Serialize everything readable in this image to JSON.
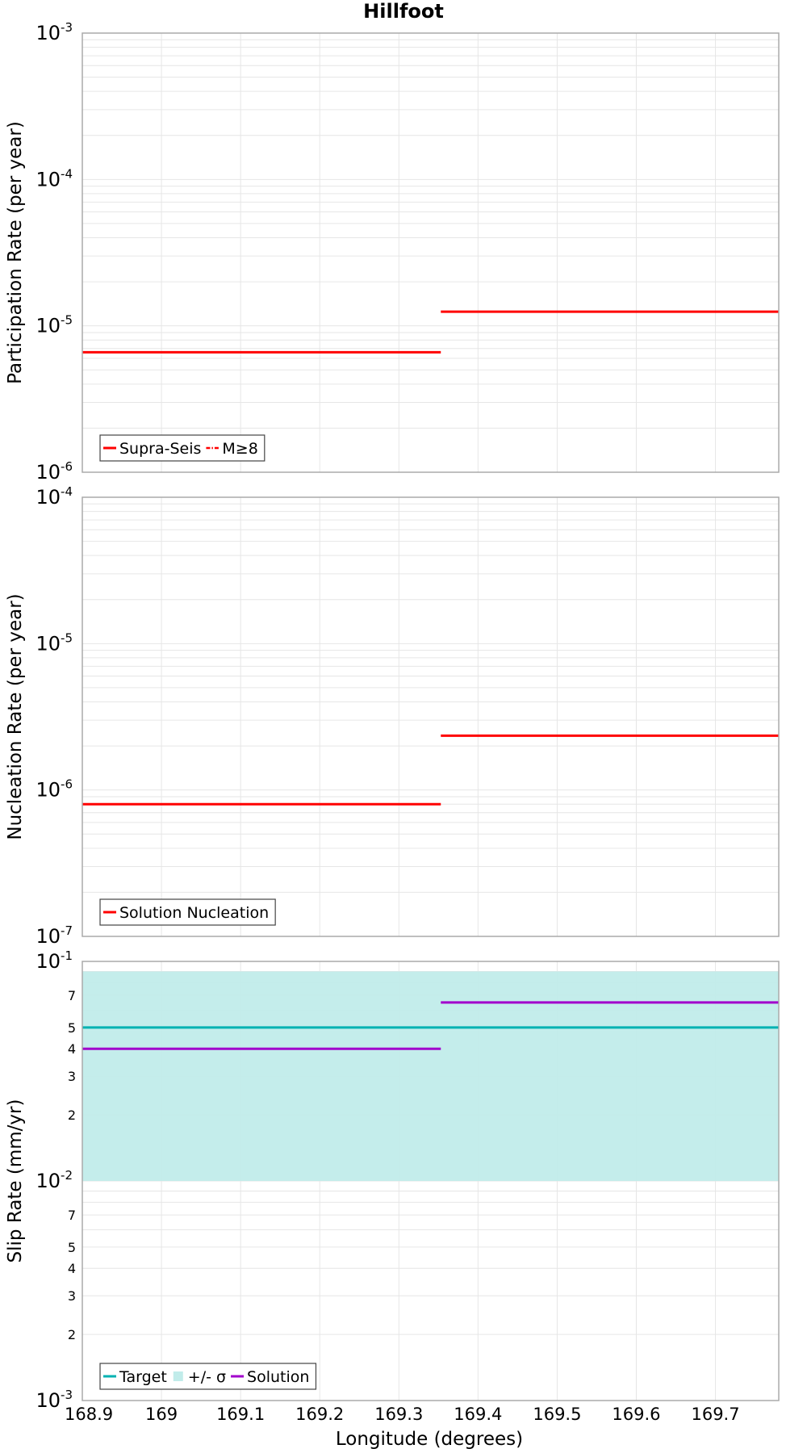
{
  "title": "Hillfoot",
  "colors": {
    "red": "#ff0000",
    "target": "#00b2b2",
    "band": "#c1ecea",
    "solution": "#a200cc",
    "grid": "#e6e6e6",
    "frame": "#aaaaaa"
  },
  "chart_data": {
    "type": "line",
    "title": "Hillfoot",
    "xlabel": "Longitude (degrees)",
    "xlim": [
      168.9,
      169.78
    ],
    "xticks": [
      "168.9",
      "169",
      "169.1",
      "169.2",
      "169.3",
      "169.4",
      "169.5",
      "169.6",
      "169.7"
    ],
    "panels": [
      {
        "id": "participation",
        "ylabel": "Participation Rate (per year)",
        "yscale": "log",
        "ylim": [
          1e-06,
          0.001
        ],
        "major_ticks": [
          {
            "exp": -6,
            "base": "10",
            "sup": "-6"
          },
          {
            "exp": -5,
            "base": "10",
            "sup": "-5"
          },
          {
            "exp": -4,
            "base": "10",
            "sup": "-4"
          },
          {
            "exp": -3,
            "base": "10",
            "sup": "-3"
          }
        ],
        "minor_labels": [],
        "series": [
          {
            "name": "Supra-Seis",
            "style": "solid",
            "color": "#ff0000",
            "segments": [
              {
                "x0": 168.9,
                "x1": 169.353,
                "y": 6.6e-06
              },
              {
                "x0": 169.353,
                "x1": 169.78,
                "y": 1.25e-05
              }
            ]
          },
          {
            "name": "M≥8",
            "style": "dashdot",
            "color": "#ff0000",
            "segments": []
          }
        ],
        "legend": [
          {
            "label": "Supra-Seis",
            "kind": "solid",
            "color": "#ff0000"
          },
          {
            "label": "M≥8",
            "kind": "dashdot",
            "color": "#ff0000"
          }
        ]
      },
      {
        "id": "nucleation",
        "ylabel": "Nucleation Rate (per year)",
        "yscale": "log",
        "ylim": [
          1e-07,
          0.0001
        ],
        "major_ticks": [
          {
            "exp": -7,
            "base": "10",
            "sup": "-7"
          },
          {
            "exp": -6,
            "base": "10",
            "sup": "-6"
          },
          {
            "exp": -5,
            "base": "10",
            "sup": "-5"
          },
          {
            "exp": -4,
            "base": "10",
            "sup": "-4"
          }
        ],
        "minor_labels": [],
        "series": [
          {
            "name": "Solution Nucleation",
            "style": "solid",
            "color": "#ff0000",
            "segments": [
              {
                "x0": 168.9,
                "x1": 169.353,
                "y": 8e-07
              },
              {
                "x0": 169.353,
                "x1": 169.78,
                "y": 2.35e-06
              }
            ]
          }
        ],
        "legend": [
          {
            "label": "Solution Nucleation",
            "kind": "solid",
            "color": "#ff0000"
          }
        ]
      },
      {
        "id": "slip",
        "ylabel": "Slip Rate (mm/yr)",
        "yscale": "log",
        "ylim": [
          0.001,
          0.1
        ],
        "major_ticks": [
          {
            "exp": -3,
            "base": "10",
            "sup": "-3"
          },
          {
            "exp": -2,
            "base": "10",
            "sup": "-2"
          },
          {
            "exp": -1,
            "base": "10",
            "sup": "-1"
          }
        ],
        "minor_labels": [
          {
            "value": 0.002,
            "label": "2"
          },
          {
            "value": 0.003,
            "label": "3"
          },
          {
            "value": 0.004,
            "label": "4"
          },
          {
            "value": 0.005,
            "label": "5"
          },
          {
            "value": 0.007,
            "label": "7"
          },
          {
            "value": 0.02,
            "label": "2"
          },
          {
            "value": 0.03,
            "label": "3"
          },
          {
            "value": 0.04,
            "label": "4"
          },
          {
            "value": 0.05,
            "label": "5"
          },
          {
            "value": 0.07,
            "label": "7"
          }
        ],
        "band": {
          "name": "+/- σ",
          "y0": 0.01,
          "y1": 0.09,
          "x0": 168.9,
          "x1": 169.78,
          "color": "#c1ecea"
        },
        "series": [
          {
            "name": "Target",
            "style": "solid",
            "color": "#00b2b2",
            "segments": [
              {
                "x0": 168.9,
                "x1": 169.78,
                "y": 0.05
              }
            ]
          },
          {
            "name": "Solution",
            "style": "solid",
            "color": "#a200cc",
            "segments": [
              {
                "x0": 168.9,
                "x1": 169.353,
                "y": 0.04
              },
              {
                "x0": 169.353,
                "x1": 169.78,
                "y": 0.065
              }
            ]
          }
        ],
        "legend": [
          {
            "label": "Target",
            "kind": "solid",
            "color": "#00b2b2"
          },
          {
            "label": "+/- σ",
            "kind": "box",
            "color": "#c1ecea"
          },
          {
            "label": "Solution",
            "kind": "solid",
            "color": "#a200cc"
          }
        ]
      }
    ]
  }
}
